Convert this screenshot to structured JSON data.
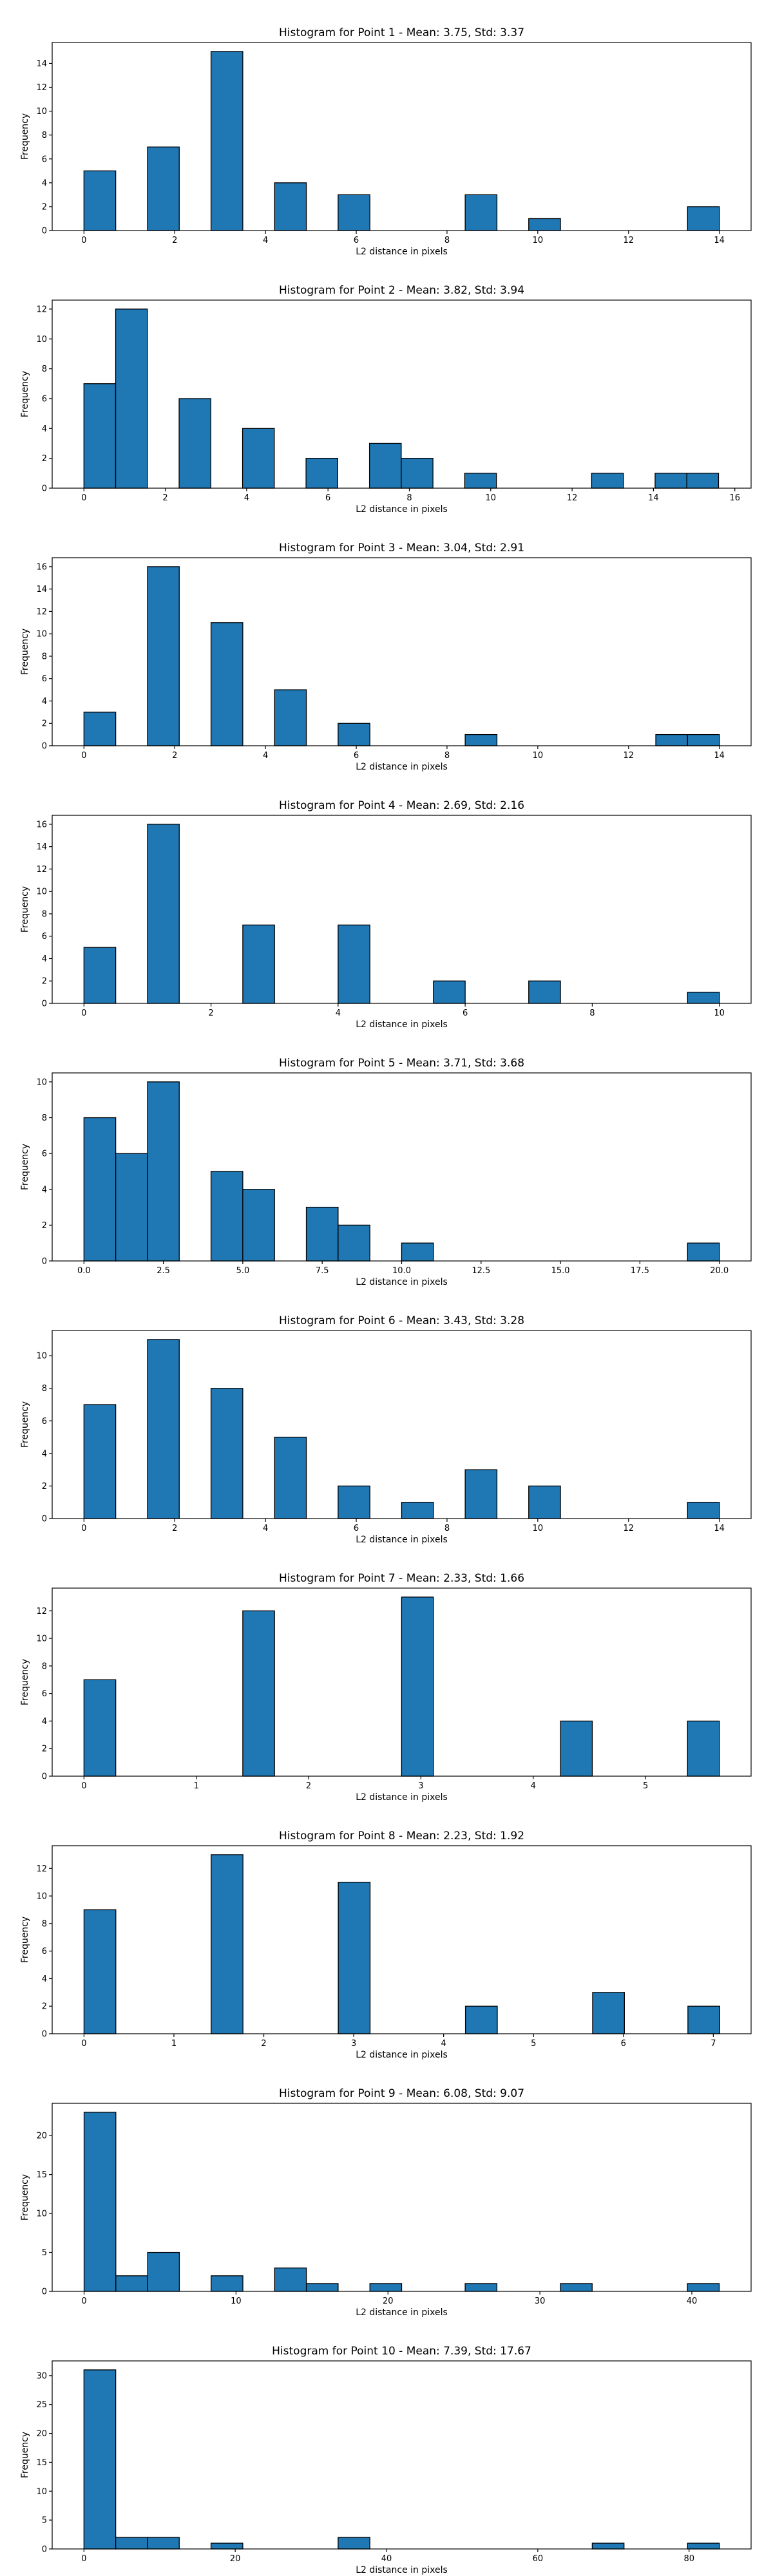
{
  "chart_data": [
    {
      "type": "bar",
      "title": "Histogram for Point 1 - Mean: 3.75, Std: 3.37",
      "xlabel": "L2 distance in pixels",
      "ylabel": "Frequency",
      "xlim": [
        -0.7,
        14.7
      ],
      "ylim": [
        0,
        15.75
      ],
      "xticks": [
        0,
        2,
        4,
        6,
        8,
        10,
        12,
        14
      ],
      "xtick_labels": [
        "0",
        "2",
        "4",
        "6",
        "8",
        "10",
        "12",
        "14"
      ],
      "yticks": [
        0,
        2,
        4,
        6,
        8,
        10,
        12,
        14
      ],
      "ytick_labels": [
        "0",
        "2",
        "4",
        "6",
        "8",
        "10",
        "12",
        "14"
      ],
      "bin_width": 0.7,
      "bins": [
        {
          "x0": 0.0,
          "value": 5
        },
        {
          "x0": 1.4,
          "value": 7
        },
        {
          "x0": 2.8,
          "value": 15
        },
        {
          "x0": 4.2,
          "value": 4
        },
        {
          "x0": 5.6,
          "value": 3
        },
        {
          "x0": 8.4,
          "value": 3
        },
        {
          "x0": 9.8,
          "value": 1
        },
        {
          "x0": 13.3,
          "value": 2
        }
      ]
    },
    {
      "type": "bar",
      "title": "Histogram for Point 2 - Mean: 3.82, Std: 3.94",
      "xlabel": "L2 distance in pixels",
      "ylabel": "Frequency",
      "xlim": [
        -0.78,
        16.4
      ],
      "ylim": [
        0,
        12.6
      ],
      "xticks": [
        0,
        2,
        4,
        6,
        8,
        10,
        12,
        14,
        16
      ],
      "xtick_labels": [
        "0",
        "2",
        "4",
        "6",
        "8",
        "10",
        "12",
        "14",
        "16"
      ],
      "yticks": [
        0,
        2,
        4,
        6,
        8,
        10,
        12
      ],
      "ytick_labels": [
        "0",
        "2",
        "4",
        "6",
        "8",
        "10",
        "12"
      ],
      "bin_width": 0.78,
      "bins": [
        {
          "x0": 0.0,
          "value": 7
        },
        {
          "x0": 0.78,
          "value": 12
        },
        {
          "x0": 2.34,
          "value": 6
        },
        {
          "x0": 3.9,
          "value": 4
        },
        {
          "x0": 5.46,
          "value": 2
        },
        {
          "x0": 7.02,
          "value": 3
        },
        {
          "x0": 7.8,
          "value": 2
        },
        {
          "x0": 9.36,
          "value": 1
        },
        {
          "x0": 12.48,
          "value": 1
        },
        {
          "x0": 14.04,
          "value": 1
        },
        {
          "x0": 14.82,
          "value": 1
        }
      ]
    },
    {
      "type": "bar",
      "title": "Histogram for Point 3 - Mean: 3.04, Std: 2.91",
      "xlabel": "L2 distance in pixels",
      "ylabel": "Frequency",
      "xlim": [
        -0.7,
        14.7
      ],
      "ylim": [
        0,
        16.8
      ],
      "xticks": [
        0,
        2,
        4,
        6,
        8,
        10,
        12,
        14
      ],
      "xtick_labels": [
        "0",
        "2",
        "4",
        "6",
        "8",
        "10",
        "12",
        "14"
      ],
      "yticks": [
        0,
        2,
        4,
        6,
        8,
        10,
        12,
        14,
        16
      ],
      "ytick_labels": [
        "0",
        "2",
        "4",
        "6",
        "8",
        "10",
        "12",
        "14",
        "16"
      ],
      "bin_width": 0.7,
      "bins": [
        {
          "x0": 0.0,
          "value": 3
        },
        {
          "x0": 1.4,
          "value": 16
        },
        {
          "x0": 2.8,
          "value": 11
        },
        {
          "x0": 4.2,
          "value": 5
        },
        {
          "x0": 5.6,
          "value": 2
        },
        {
          "x0": 8.4,
          "value": 1
        },
        {
          "x0": 12.6,
          "value": 1
        },
        {
          "x0": 13.3,
          "value": 1
        }
      ]
    },
    {
      "type": "bar",
      "title": "Histogram for Point 4 - Mean: 2.69, Std: 2.16",
      "xlabel": "L2 distance in pixels",
      "ylabel": "Frequency",
      "xlim": [
        -0.5,
        10.5
      ],
      "ylim": [
        0,
        16.8
      ],
      "xticks": [
        0,
        2,
        4,
        6,
        8,
        10
      ],
      "xtick_labels": [
        "0",
        "2",
        "4",
        "6",
        "8",
        "10"
      ],
      "yticks": [
        0,
        2,
        4,
        6,
        8,
        10,
        12,
        14,
        16
      ],
      "ytick_labels": [
        "0",
        "2",
        "4",
        "6",
        "8",
        "10",
        "12",
        "14",
        "16"
      ],
      "bin_width": 0.5,
      "bins": [
        {
          "x0": 0.0,
          "value": 5
        },
        {
          "x0": 1.0,
          "value": 16
        },
        {
          "x0": 2.5,
          "value": 7
        },
        {
          "x0": 4.0,
          "value": 7
        },
        {
          "x0": 5.5,
          "value": 2
        },
        {
          "x0": 7.0,
          "value": 2
        },
        {
          "x0": 9.5,
          "value": 1
        }
      ]
    },
    {
      "type": "bar",
      "title": "Histogram for Point 5 - Mean: 3.71, Std: 3.68",
      "xlabel": "L2 distance in pixels",
      "ylabel": "Frequency",
      "xlim": [
        -1.0,
        21.0
      ],
      "ylim": [
        0,
        10.5
      ],
      "xticks": [
        0,
        2.5,
        5,
        7.5,
        10,
        12.5,
        15,
        17.5,
        20
      ],
      "xtick_labels": [
        "0.0",
        "2.5",
        "5.0",
        "7.5",
        "10.0",
        "12.5",
        "15.0",
        "17.5",
        "20.0"
      ],
      "yticks": [
        0,
        2,
        4,
        6,
        8,
        10
      ],
      "ytick_labels": [
        "0",
        "2",
        "4",
        "6",
        "8",
        "10"
      ],
      "bin_width": 1.0,
      "bins": [
        {
          "x0": 0.0,
          "value": 8
        },
        {
          "x0": 1.0,
          "value": 6
        },
        {
          "x0": 2.0,
          "value": 10
        },
        {
          "x0": 4.0,
          "value": 5
        },
        {
          "x0": 5.0,
          "value": 4
        },
        {
          "x0": 7.0,
          "value": 3
        },
        {
          "x0": 8.0,
          "value": 2
        },
        {
          "x0": 10.0,
          "value": 1
        },
        {
          "x0": 19.0,
          "value": 1
        }
      ]
    },
    {
      "type": "bar",
      "title": "Histogram for Point 6 - Mean: 3.43, Std: 3.28",
      "xlabel": "L2 distance in pixels",
      "ylabel": "Frequency",
      "xlim": [
        -0.7,
        14.7
      ],
      "ylim": [
        0,
        11.55
      ],
      "xticks": [
        0,
        2,
        4,
        6,
        8,
        10,
        12,
        14
      ],
      "xtick_labels": [
        "0",
        "2",
        "4",
        "6",
        "8",
        "10",
        "12",
        "14"
      ],
      "yticks": [
        0,
        2,
        4,
        6,
        8,
        10
      ],
      "ytick_labels": [
        "0",
        "2",
        "4",
        "6",
        "8",
        "10"
      ],
      "bin_width": 0.7,
      "bins": [
        {
          "x0": 0.0,
          "value": 7
        },
        {
          "x0": 1.4,
          "value": 11
        },
        {
          "x0": 2.8,
          "value": 8
        },
        {
          "x0": 4.2,
          "value": 5
        },
        {
          "x0": 5.6,
          "value": 2
        },
        {
          "x0": 7.0,
          "value": 1
        },
        {
          "x0": 8.4,
          "value": 3
        },
        {
          "x0": 9.8,
          "value": 2
        },
        {
          "x0": 13.3,
          "value": 1
        }
      ]
    },
    {
      "type": "bar",
      "title": "Histogram for Point 7 - Mean: 2.33, Std: 1.66",
      "xlabel": "L2 distance in pixels",
      "ylabel": "Frequency",
      "xlim": [
        -0.283,
        5.94
      ],
      "ylim": [
        0,
        13.65
      ],
      "xticks": [
        0,
        1,
        2,
        3,
        4,
        5
      ],
      "xtick_labels": [
        "0",
        "1",
        "2",
        "3",
        "4",
        "5"
      ],
      "yticks": [
        0,
        2,
        4,
        6,
        8,
        10,
        12
      ],
      "ytick_labels": [
        "0",
        "2",
        "4",
        "6",
        "8",
        "10",
        "12"
      ],
      "bin_width": 0.283,
      "bins": [
        {
          "x0": 0.0,
          "value": 7
        },
        {
          "x0": 1.414,
          "value": 12
        },
        {
          "x0": 2.828,
          "value": 13
        },
        {
          "x0": 4.243,
          "value": 4
        },
        {
          "x0": 5.374,
          "value": 4
        }
      ]
    },
    {
      "type": "bar",
      "title": "Histogram for Point 8 - Mean: 2.23, Std: 1.92",
      "xlabel": "L2 distance in pixels",
      "ylabel": "Frequency",
      "xlim": [
        -0.354,
        7.42
      ],
      "ylim": [
        0,
        13.65
      ],
      "xticks": [
        0,
        1,
        2,
        3,
        4,
        5,
        6,
        7
      ],
      "xtick_labels": [
        "0",
        "1",
        "2",
        "3",
        "4",
        "5",
        "6",
        "7"
      ],
      "yticks": [
        0,
        2,
        4,
        6,
        8,
        10,
        12
      ],
      "ytick_labels": [
        "0",
        "2",
        "4",
        "6",
        "8",
        "10",
        "12"
      ],
      "bin_width": 0.354,
      "bins": [
        {
          "x0": 0.0,
          "value": 9
        },
        {
          "x0": 1.414,
          "value": 13
        },
        {
          "x0": 2.828,
          "value": 11
        },
        {
          "x0": 4.243,
          "value": 2
        },
        {
          "x0": 5.657,
          "value": 3
        },
        {
          "x0": 6.717,
          "value": 2
        }
      ]
    },
    {
      "type": "bar",
      "title": "Histogram for Point 9 - Mean: 6.08, Std: 9.07",
      "xlabel": "L2 distance in pixels",
      "ylabel": "Frequency",
      "xlim": [
        -2.1,
        43.9
      ],
      "ylim": [
        0,
        24.15
      ],
      "xticks": [
        0,
        10,
        20,
        30,
        40
      ],
      "xtick_labels": [
        "0",
        "10",
        "20",
        "30",
        "40"
      ],
      "yticks": [
        0,
        5,
        10,
        15,
        20
      ],
      "ytick_labels": [
        "0",
        "5",
        "10",
        "15",
        "20"
      ],
      "bin_width": 2.09,
      "bins": [
        {
          "x0": 0.0,
          "value": 23
        },
        {
          "x0": 2.09,
          "value": 2
        },
        {
          "x0": 4.18,
          "value": 5
        },
        {
          "x0": 8.36,
          "value": 2
        },
        {
          "x0": 12.54,
          "value": 3
        },
        {
          "x0": 14.63,
          "value": 1
        },
        {
          "x0": 18.81,
          "value": 1
        },
        {
          "x0": 25.08,
          "value": 1
        },
        {
          "x0": 31.35,
          "value": 1
        },
        {
          "x0": 39.71,
          "value": 1
        }
      ]
    },
    {
      "type": "bar",
      "title": "Histogram for Point 10 - Mean: 7.39, Std: 17.67",
      "xlabel": "L2 distance in pixels",
      "ylabel": "Frequency",
      "xlim": [
        -4.2,
        88.2
      ],
      "ylim": [
        0,
        32.55
      ],
      "xticks": [
        0,
        20,
        40,
        60,
        80
      ],
      "xtick_labels": [
        "0",
        "20",
        "40",
        "60",
        "80"
      ],
      "yticks": [
        0,
        5,
        10,
        15,
        20,
        25,
        30
      ],
      "ytick_labels": [
        "0",
        "5",
        "10",
        "15",
        "20",
        "25",
        "30"
      ],
      "bin_width": 4.2,
      "bins": [
        {
          "x0": 0.0,
          "value": 31
        },
        {
          "x0": 4.2,
          "value": 2
        },
        {
          "x0": 8.4,
          "value": 2
        },
        {
          "x0": 16.8,
          "value": 1
        },
        {
          "x0": 33.6,
          "value": 2
        },
        {
          "x0": 67.2,
          "value": 1
        },
        {
          "x0": 79.8,
          "value": 1
        }
      ]
    }
  ]
}
